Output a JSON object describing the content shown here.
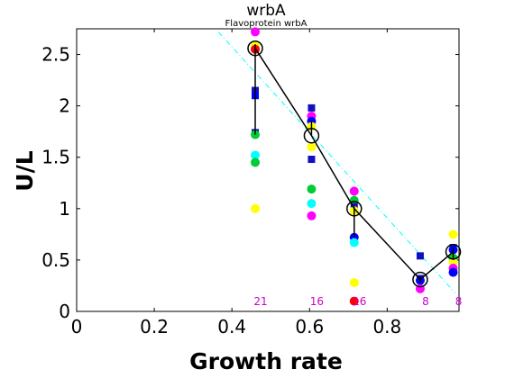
{
  "chart_data": {
    "type": "scatter",
    "title": "wrbA",
    "subtitle": "Flavoprotein wrbA",
    "xlabel": "Growth rate",
    "ylabel": "U/L",
    "xlim": [
      0,
      0.985
    ],
    "ylim": [
      0,
      2.75
    ],
    "x_ticks": [
      0,
      0.2,
      0.4,
      0.6,
      0.8
    ],
    "x_tick_labels": [
      "0",
      "0.2",
      "0.4",
      "0.6",
      "0.8"
    ],
    "y_ticks": [
      0,
      0.5,
      1,
      1.5,
      2,
      2.5
    ],
    "y_tick_labels": [
      "0",
      "0.5",
      "1",
      "1.5",
      "2",
      "2.5"
    ],
    "grid": false,
    "fit_line": {
      "color": "#00ffff",
      "style": "dash-dot",
      "x": [
        0.365,
        0.975
      ],
      "y": [
        2.72,
        0.18
      ]
    },
    "mean_line": {
      "color": "#000000",
      "x": [
        0.46,
        0.605,
        0.715,
        0.885,
        0.97
      ],
      "y": [
        2.56,
        1.71,
        1.0,
        0.31,
        0.58
      ]
    },
    "error_bars": [
      {
        "x": 0.46,
        "low": 1.72,
        "high": 2.6
      },
      {
        "x": 0.605,
        "low": 1.71,
        "high": 1.85
      },
      {
        "x": 0.715,
        "low": 0.72,
        "high": 1.02
      },
      {
        "x": 0.885,
        "low": 0.28,
        "high": 0.34
      },
      {
        "x": 0.97,
        "low": 0.5,
        "high": 0.62
      }
    ],
    "points": [
      {
        "x": 0.46,
        "y": 2.72,
        "color": "#ff00ff",
        "shape": "circle"
      },
      {
        "x": 0.46,
        "y": 2.58,
        "color": "#ffff00",
        "shape": "circle"
      },
      {
        "x": 0.46,
        "y": 2.55,
        "color": "#ff0000",
        "shape": "circle"
      },
      {
        "x": 0.46,
        "y": 2.15,
        "color": "#1010c0",
        "shape": "square"
      },
      {
        "x": 0.46,
        "y": 2.1,
        "color": "#0000ff",
        "shape": "square"
      },
      {
        "x": 0.46,
        "y": 1.74,
        "color": "#1010c0",
        "shape": "square"
      },
      {
        "x": 0.46,
        "y": 1.72,
        "color": "#00cc33",
        "shape": "circle"
      },
      {
        "x": 0.46,
        "y": 1.52,
        "color": "#00ffff",
        "shape": "circle"
      },
      {
        "x": 0.46,
        "y": 1.45,
        "color": "#00cc33",
        "shape": "circle"
      },
      {
        "x": 0.46,
        "y": 1.0,
        "color": "#ffff00",
        "shape": "circle"
      },
      {
        "x": 0.605,
        "y": 1.98,
        "color": "#1010c0",
        "shape": "square"
      },
      {
        "x": 0.605,
        "y": 1.9,
        "color": "#ff00ff",
        "shape": "circle"
      },
      {
        "x": 0.605,
        "y": 1.85,
        "color": "#0000ff",
        "shape": "circle"
      },
      {
        "x": 0.605,
        "y": 1.8,
        "color": "#ffff00",
        "shape": "circle"
      },
      {
        "x": 0.605,
        "y": 1.6,
        "color": "#ffff00",
        "shape": "circle"
      },
      {
        "x": 0.605,
        "y": 1.48,
        "color": "#1010c0",
        "shape": "square"
      },
      {
        "x": 0.605,
        "y": 1.19,
        "color": "#00cc33",
        "shape": "circle"
      },
      {
        "x": 0.605,
        "y": 1.05,
        "color": "#00ffff",
        "shape": "circle"
      },
      {
        "x": 0.605,
        "y": 0.93,
        "color": "#ff00ff",
        "shape": "circle"
      },
      {
        "x": 0.715,
        "y": 1.17,
        "color": "#ff00ff",
        "shape": "circle"
      },
      {
        "x": 0.715,
        "y": 1.08,
        "color": "#00cc33",
        "shape": "circle"
      },
      {
        "x": 0.715,
        "y": 1.02,
        "color": "#1010c0",
        "shape": "square"
      },
      {
        "x": 0.715,
        "y": 0.98,
        "color": "#ffff00",
        "shape": "circle"
      },
      {
        "x": 0.715,
        "y": 0.72,
        "color": "#0000ff",
        "shape": "circle"
      },
      {
        "x": 0.715,
        "y": 0.67,
        "color": "#00ffff",
        "shape": "circle"
      },
      {
        "x": 0.715,
        "y": 0.28,
        "color": "#ffff00",
        "shape": "circle"
      },
      {
        "x": 0.715,
        "y": 0.1,
        "color": "#ff0000",
        "shape": "circle"
      },
      {
        "x": 0.885,
        "y": 0.54,
        "color": "#1010c0",
        "shape": "square"
      },
      {
        "x": 0.885,
        "y": 0.32,
        "color": "#1010c0",
        "shape": "square"
      },
      {
        "x": 0.885,
        "y": 0.3,
        "color": "#0000ff",
        "shape": "circle"
      },
      {
        "x": 0.885,
        "y": 0.22,
        "color": "#ff00ff",
        "shape": "circle"
      },
      {
        "x": 0.97,
        "y": 0.75,
        "color": "#ffff00",
        "shape": "circle"
      },
      {
        "x": 0.97,
        "y": 0.62,
        "color": "#1010c0",
        "shape": "square"
      },
      {
        "x": 0.97,
        "y": 0.6,
        "color": "#0000ff",
        "shape": "circle"
      },
      {
        "x": 0.97,
        "y": 0.52,
        "color": "#00cc33",
        "shape": "circle"
      },
      {
        "x": 0.97,
        "y": 0.48,
        "color": "#ffff00",
        "shape": "circle"
      },
      {
        "x": 0.97,
        "y": 0.42,
        "color": "#ff00ff",
        "shape": "circle"
      },
      {
        "x": 0.97,
        "y": 0.38,
        "color": "#0000ff",
        "shape": "circle"
      }
    ],
    "count_labels": [
      {
        "x": 0.46,
        "text": "21"
      },
      {
        "x": 0.605,
        "text": "16"
      },
      {
        "x": 0.715,
        "text": "16"
      },
      {
        "x": 0.885,
        "text": "8"
      },
      {
        "x": 0.97,
        "text": "8"
      }
    ],
    "count_label_color": "#cc00cc"
  }
}
